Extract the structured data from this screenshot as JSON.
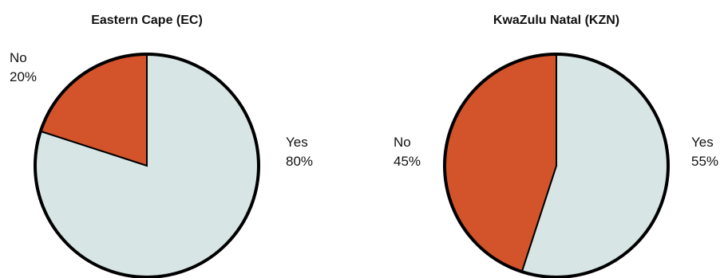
{
  "colors": {
    "yes": "#d7e5e5",
    "no": "#d3542b",
    "outline": "#000000",
    "background": "#ffffff"
  },
  "chart_data": [
    {
      "type": "pie",
      "title": "Eastern Cape (EC)",
      "categories": [
        "Yes",
        "No"
      ],
      "values": [
        80,
        20
      ],
      "labels": [
        "80%",
        "20%"
      ]
    },
    {
      "type": "pie",
      "title": "KwaZulu Natal (KZN)",
      "categories": [
        "Yes",
        "No"
      ],
      "values": [
        55,
        45
      ],
      "labels": [
        "55%",
        "45%"
      ]
    }
  ]
}
